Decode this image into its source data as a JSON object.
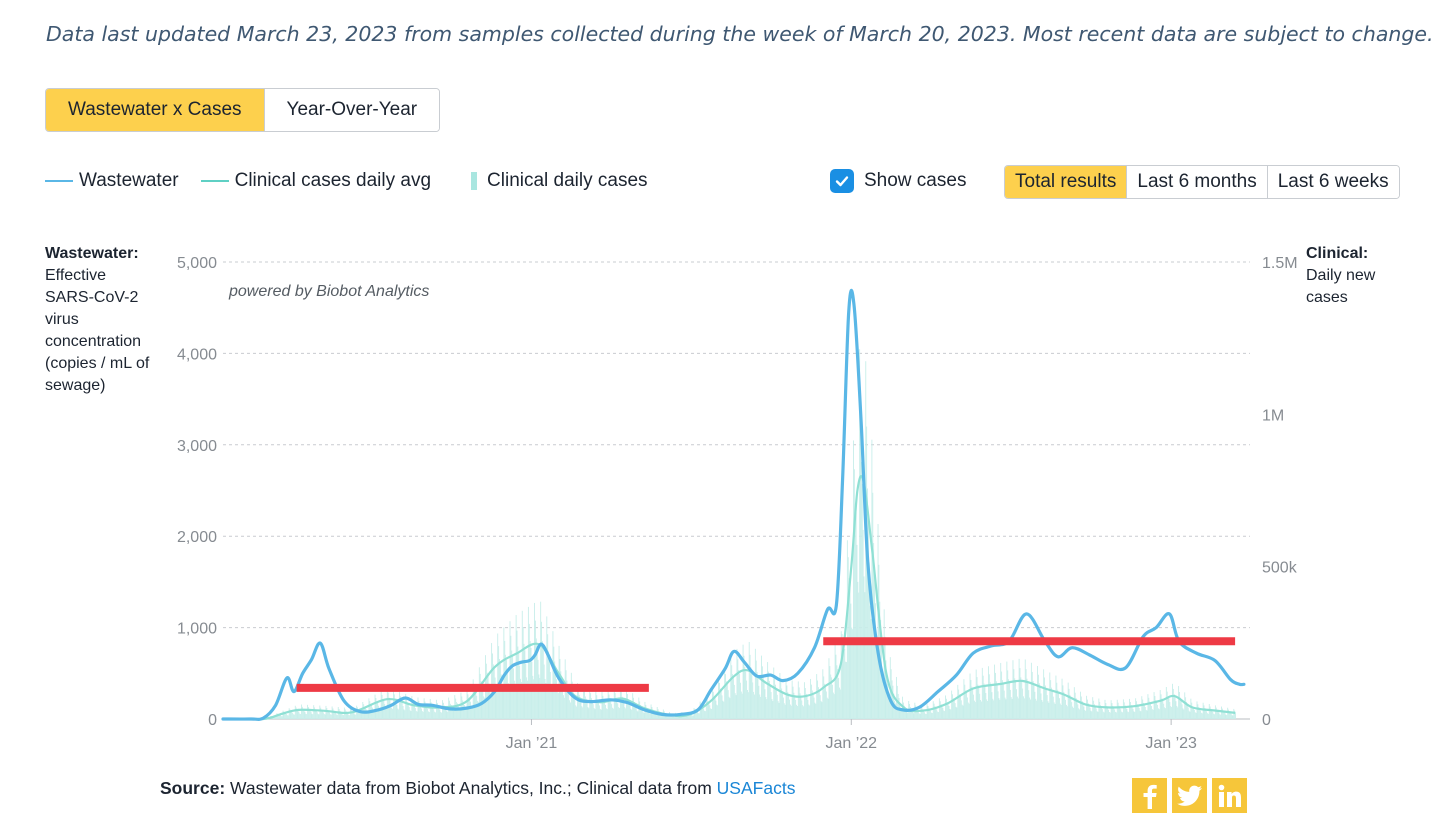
{
  "update_note": "Data last updated March 23, 2023 from samples collected during the week of March 20, 2023. Most recent data are subject to change.",
  "view_tabs": [
    {
      "label": "Wastewater x Cases",
      "active": true
    },
    {
      "label": "Year-Over-Year",
      "active": false
    }
  ],
  "legend": {
    "wastewater": "Wastewater",
    "clinical_avg": "Clinical cases daily avg",
    "clinical_daily": "Clinical daily cases"
  },
  "show_cases": {
    "label": "Show cases",
    "checked": true
  },
  "range_tabs": [
    {
      "label": "Total results",
      "active": true
    },
    {
      "label": "Last 6 months",
      "active": false
    },
    {
      "label": "Last 6 weeks",
      "active": false
    }
  ],
  "left_axis_title": {
    "bold": "Wastewater:",
    "text": "Effective SARS-CoV-2 virus concentration (copies / mL of sewage)"
  },
  "right_axis_title": {
    "bold": "Clinical:",
    "text": "Daily new cases"
  },
  "watermark": "powered by Biobot Analytics",
  "source": {
    "label": "Source:",
    "text": "Wastewater data from Biobot Analytics, Inc.; Clinical data from ",
    "link": "USAFacts"
  },
  "share": {
    "facebook": "facebook-icon",
    "twitter": "twitter-icon",
    "linkedin": "linkedin-icon"
  },
  "colors": {
    "wastewater": "#5ab7e6",
    "clinical_avg": "#8fe0d4",
    "clinical_bars": "#c8eeea",
    "annotation": "#ee3a45",
    "accent": "#fdd04d",
    "checkbox": "#1a8fe3",
    "link": "#1a86d6",
    "share_bg": "#f6c63a"
  },
  "chart_data": {
    "type": "line",
    "x_unit": "date",
    "xlim": [
      "2020-01-15",
      "2023-04-01"
    ],
    "x_ticks": [
      {
        "date": "2021-01-01",
        "label": "Jan ’21"
      },
      {
        "date": "2022-01-01",
        "label": "Jan ’22"
      },
      {
        "date": "2023-01-01",
        "label": "Jan ’23"
      }
    ],
    "y_left": {
      "lim": [
        0,
        5000
      ],
      "ticks": [
        0,
        1000,
        2000,
        3000,
        4000,
        5000
      ],
      "tick_labels": [
        "0",
        "1,000",
        "2,000",
        "3,000",
        "4,000",
        "5,000"
      ]
    },
    "y_right": {
      "lim": [
        0,
        1500000
      ],
      "ticks": [
        0,
        500000,
        1000000,
        1500000
      ],
      "tick_labels": [
        "0",
        "500k",
        "1M",
        "1.5M"
      ]
    },
    "grid": "horizontal dotted",
    "series": [
      {
        "name": "Wastewater",
        "axis": "left",
        "points": [
          [
            "2020-01-15",
            0
          ],
          [
            "2020-02-15",
            0
          ],
          [
            "2020-03-01",
            10
          ],
          [
            "2020-03-15",
            150
          ],
          [
            "2020-03-28",
            450
          ],
          [
            "2020-04-05",
            300
          ],
          [
            "2020-04-15",
            500
          ],
          [
            "2020-04-25",
            650
          ],
          [
            "2020-05-05",
            830
          ],
          [
            "2020-05-15",
            550
          ],
          [
            "2020-06-01",
            200
          ],
          [
            "2020-06-20",
            80
          ],
          [
            "2020-07-10",
            100
          ],
          [
            "2020-07-25",
            150
          ],
          [
            "2020-08-10",
            230
          ],
          [
            "2020-08-25",
            160
          ],
          [
            "2020-09-10",
            150
          ],
          [
            "2020-09-30",
            110
          ],
          [
            "2020-10-20",
            120
          ],
          [
            "2020-11-05",
            170
          ],
          [
            "2020-11-20",
            300
          ],
          [
            "2020-12-01",
            480
          ],
          [
            "2020-12-10",
            580
          ],
          [
            "2020-12-20",
            620
          ],
          [
            "2020-12-30",
            640
          ],
          [
            "2021-01-05",
            700
          ],
          [
            "2021-01-12",
            820
          ],
          [
            "2021-01-20",
            700
          ],
          [
            "2021-02-01",
            450
          ],
          [
            "2021-02-20",
            230
          ],
          [
            "2021-03-10",
            190
          ],
          [
            "2021-04-01",
            210
          ],
          [
            "2021-04-20",
            180
          ],
          [
            "2021-05-10",
            100
          ],
          [
            "2021-05-30",
            50
          ],
          [
            "2021-06-20",
            50
          ],
          [
            "2021-07-10",
            100
          ],
          [
            "2021-07-25",
            320
          ],
          [
            "2021-08-10",
            550
          ],
          [
            "2021-08-20",
            740
          ],
          [
            "2021-09-01",
            620
          ],
          [
            "2021-09-15",
            470
          ],
          [
            "2021-10-01",
            480
          ],
          [
            "2021-10-15",
            420
          ],
          [
            "2021-11-01",
            500
          ],
          [
            "2021-11-20",
            780
          ],
          [
            "2021-12-05",
            1200
          ],
          [
            "2021-12-15",
            1250
          ],
          [
            "2021-12-22",
            2600
          ],
          [
            "2021-12-29",
            4450
          ],
          [
            "2022-01-04",
            4540
          ],
          [
            "2022-01-12",
            3300
          ],
          [
            "2022-01-20",
            1700
          ],
          [
            "2022-02-01",
            700
          ],
          [
            "2022-02-15",
            200
          ],
          [
            "2022-03-01",
            100
          ],
          [
            "2022-03-20",
            130
          ],
          [
            "2022-04-10",
            300
          ],
          [
            "2022-05-01",
            480
          ],
          [
            "2022-05-20",
            720
          ],
          [
            "2022-06-10",
            800
          ],
          [
            "2022-06-30",
            850
          ],
          [
            "2022-07-20",
            1150
          ],
          [
            "2022-08-10",
            850
          ],
          [
            "2022-08-25",
            680
          ],
          [
            "2022-09-10",
            780
          ],
          [
            "2022-09-30",
            700
          ],
          [
            "2022-10-20",
            600
          ],
          [
            "2022-11-10",
            560
          ],
          [
            "2022-11-30",
            900
          ],
          [
            "2022-12-15",
            1000
          ],
          [
            "2022-12-30",
            1150
          ],
          [
            "2023-01-10",
            850
          ],
          [
            "2023-01-30",
            720
          ],
          [
            "2023-02-20",
            640
          ],
          [
            "2023-03-10",
            430
          ],
          [
            "2023-03-20",
            380
          ],
          [
            "2023-03-25",
            380
          ]
        ]
      },
      {
        "name": "Clinical cases daily avg",
        "axis": "right",
        "points": [
          [
            "2020-01-15",
            0
          ],
          [
            "2020-03-01",
            0
          ],
          [
            "2020-03-20",
            15000
          ],
          [
            "2020-04-10",
            30000
          ],
          [
            "2020-05-10",
            27000
          ],
          [
            "2020-06-10",
            22000
          ],
          [
            "2020-07-20",
            65000
          ],
          [
            "2020-08-20",
            45000
          ],
          [
            "2020-09-20",
            38000
          ],
          [
            "2020-10-20",
            60000
          ],
          [
            "2020-11-20",
            170000
          ],
          [
            "2020-12-15",
            215000
          ],
          [
            "2021-01-10",
            245000
          ],
          [
            "2021-02-01",
            150000
          ],
          [
            "2021-02-20",
            75000
          ],
          [
            "2021-03-20",
            55000
          ],
          [
            "2021-04-15",
            67000
          ],
          [
            "2021-05-10",
            35000
          ],
          [
            "2021-06-10",
            12000
          ],
          [
            "2021-07-01",
            15000
          ],
          [
            "2021-07-25",
            60000
          ],
          [
            "2021-08-20",
            140000
          ],
          [
            "2021-09-05",
            160000
          ],
          [
            "2021-09-25",
            120000
          ],
          [
            "2021-10-20",
            80000
          ],
          [
            "2021-11-10",
            75000
          ],
          [
            "2021-12-01",
            105000
          ],
          [
            "2021-12-20",
            180000
          ],
          [
            "2022-01-01",
            500000
          ],
          [
            "2022-01-08",
            750000
          ],
          [
            "2022-01-15",
            780000
          ],
          [
            "2022-01-25",
            550000
          ],
          [
            "2022-02-10",
            150000
          ],
          [
            "2022-03-01",
            40000
          ],
          [
            "2022-03-25",
            28000
          ],
          [
            "2022-04-20",
            50000
          ],
          [
            "2022-05-20",
            100000
          ],
          [
            "2022-06-20",
            115000
          ],
          [
            "2022-07-15",
            125000
          ],
          [
            "2022-08-10",
            100000
          ],
          [
            "2022-09-01",
            80000
          ],
          [
            "2022-09-25",
            48000
          ],
          [
            "2022-10-20",
            38000
          ],
          [
            "2022-11-20",
            42000
          ],
          [
            "2022-12-20",
            60000
          ],
          [
            "2023-01-05",
            75000
          ],
          [
            "2023-01-25",
            38000
          ],
          [
            "2023-02-20",
            28000
          ],
          [
            "2023-03-15",
            20000
          ]
        ]
      },
      {
        "name": "Clinical daily cases",
        "axis": "right",
        "style": "bars",
        "note": "daily values follow the daily average with weekly reporting spikes"
      }
    ],
    "annotations": [
      {
        "type": "horizontal-line",
        "axis": "left",
        "y": 340,
        "x_start": "2020-04-08",
        "x_end": "2021-05-15"
      },
      {
        "type": "horizontal-line",
        "axis": "left",
        "y": 850,
        "x_start": "2021-11-30",
        "x_end": "2023-03-15"
      }
    ]
  }
}
